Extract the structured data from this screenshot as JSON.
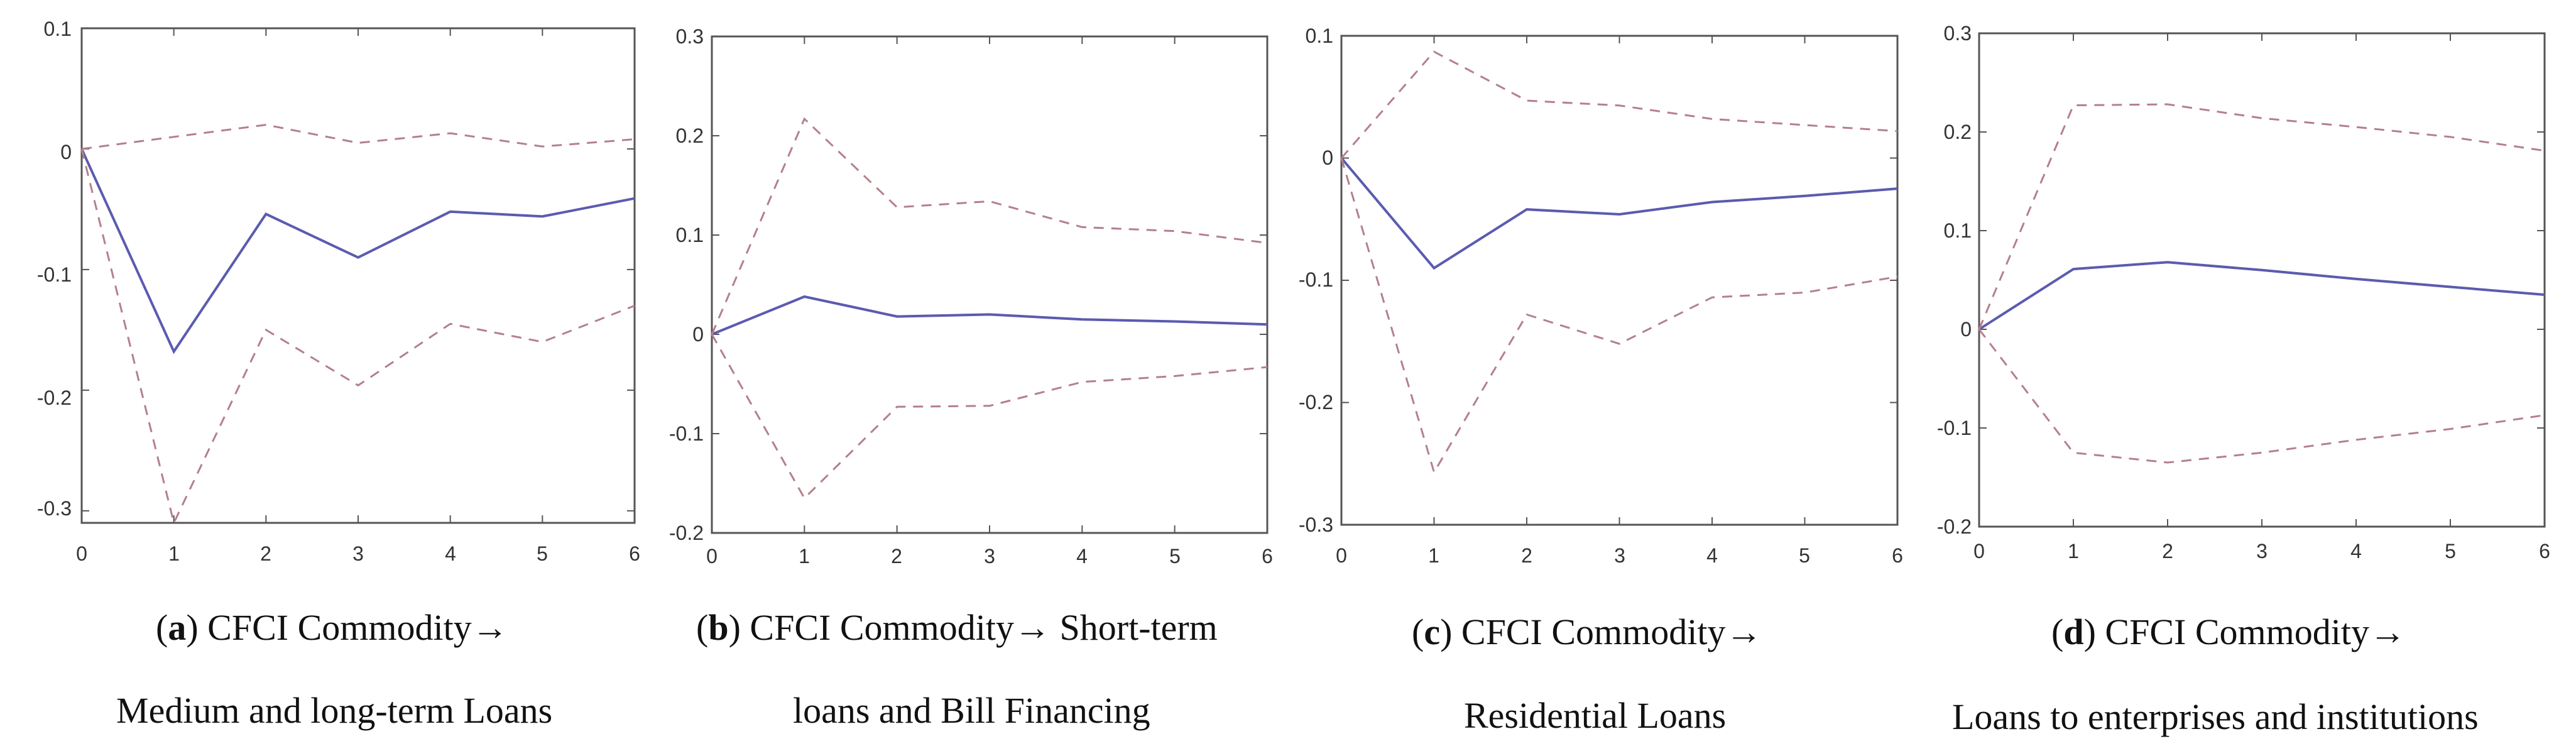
{
  "chart_data": [
    {
      "type": "line",
      "x": [
        0,
        1,
        2,
        3,
        4,
        5,
        6
      ],
      "xlim": [
        0,
        6
      ],
      "ylim": [
        -0.31,
        0.1
      ],
      "yticks": [
        0.1,
        0,
        -0.1,
        -0.2,
        -0.3
      ],
      "ytick_labels": [
        "0.1",
        "0",
        "-0.1",
        "-0.2",
        "-0.3"
      ],
      "xtick_labels": [
        "0",
        "1",
        "2",
        "3",
        "4",
        "5",
        "6"
      ],
      "series": [
        {
          "name": "response",
          "style": "solid",
          "color": "#5b5bb0",
          "values": [
            0,
            -0.168,
            -0.054,
            -0.09,
            -0.052,
            -0.056,
            -0.041
          ]
        },
        {
          "name": "upper band",
          "style": "dashed",
          "color": "#b4808a",
          "values": [
            0,
            0.01,
            0.02,
            0.005,
            0.013,
            0.002,
            0.008
          ]
        },
        {
          "name": "lower band",
          "style": "dashed",
          "color": "#b4808a",
          "values": [
            0,
            -0.31,
            -0.15,
            -0.196,
            -0.145,
            -0.16,
            -0.13
          ]
        }
      ],
      "caption_label": "a",
      "caption_line1": "CFCI Commodity→",
      "caption_line2": "Medium and long-term Loans"
    },
    {
      "type": "line",
      "x": [
        0,
        1,
        2,
        3,
        4,
        5,
        6
      ],
      "xlim": [
        0,
        6
      ],
      "ylim": [
        -0.2,
        0.3
      ],
      "yticks": [
        0.3,
        0.2,
        0.1,
        0,
        -0.1,
        -0.2
      ],
      "ytick_labels": [
        "0.3",
        "0.2",
        "0.1",
        "0",
        "-0.1",
        "-0.2"
      ],
      "xtick_labels": [
        "0",
        "1",
        "2",
        "3",
        "4",
        "5",
        "6"
      ],
      "series": [
        {
          "name": "response",
          "style": "solid",
          "color": "#5b5bb0",
          "values": [
            0,
            0.038,
            0.018,
            0.02,
            0.015,
            0.013,
            0.01
          ]
        },
        {
          "name": "upper band",
          "style": "dashed",
          "color": "#b4808a",
          "values": [
            0,
            0.217,
            0.128,
            0.134,
            0.108,
            0.104,
            0.092
          ]
        },
        {
          "name": "lower band",
          "style": "dashed",
          "color": "#b4808a",
          "values": [
            0,
            -0.165,
            -0.073,
            -0.072,
            -0.048,
            -0.042,
            -0.033
          ]
        }
      ],
      "caption_label": "b",
      "caption_line1": "CFCI Commodity→ Short-term",
      "caption_line2": "loans and Bill Financing"
    },
    {
      "type": "line",
      "x": [
        0,
        1,
        2,
        3,
        4,
        5,
        6
      ],
      "xlim": [
        0,
        6
      ],
      "ylim": [
        -0.3,
        0.1
      ],
      "yticks": [
        0.1,
        0,
        -0.1,
        -0.2,
        -0.3
      ],
      "ytick_labels": [
        "0.1",
        "0",
        "-0.1",
        "-0.2",
        "-0.3"
      ],
      "xtick_labels": [
        "0",
        "1",
        "2",
        "3",
        "4",
        "5",
        "6"
      ],
      "series": [
        {
          "name": "response",
          "style": "solid",
          "color": "#5b5bb0",
          "values": [
            0,
            -0.09,
            -0.042,
            -0.046,
            -0.036,
            -0.031,
            -0.025
          ]
        },
        {
          "name": "upper band",
          "style": "dashed",
          "color": "#b4808a",
          "values": [
            0,
            0.087,
            0.047,
            0.043,
            0.032,
            0.027,
            0.022
          ]
        },
        {
          "name": "lower band",
          "style": "dashed",
          "color": "#b4808a",
          "values": [
            0,
            -0.257,
            -0.128,
            -0.152,
            -0.114,
            -0.11,
            -0.097
          ]
        }
      ],
      "caption_label": "c",
      "caption_line1": "CFCI Commodity→",
      "caption_line2": "Residential Loans"
    },
    {
      "type": "line",
      "x": [
        0,
        1,
        2,
        3,
        4,
        5,
        6
      ],
      "xlim": [
        0,
        6
      ],
      "ylim": [
        -0.2,
        0.3
      ],
      "yticks": [
        0.3,
        0.2,
        0.1,
        0,
        -0.1,
        -0.2
      ],
      "ytick_labels": [
        "0.3",
        "0.2",
        "0.1",
        "0",
        "-0.1",
        "-0.2"
      ],
      "xtick_labels": [
        "0",
        "1",
        "2",
        "3",
        "4",
        "5",
        "6"
      ],
      "series": [
        {
          "name": "response",
          "style": "solid",
          "color": "#5b5bb0",
          "values": [
            0,
            0.061,
            0.068,
            0.06,
            0.051,
            0.043,
            0.035
          ]
        },
        {
          "name": "upper band",
          "style": "dashed",
          "color": "#b4808a",
          "values": [
            0,
            0.227,
            0.228,
            0.214,
            0.205,
            0.195,
            0.181
          ]
        },
        {
          "name": "lower band",
          "style": "dashed",
          "color": "#b4808a",
          "values": [
            0,
            -0.125,
            -0.135,
            -0.125,
            -0.112,
            -0.101,
            -0.087
          ]
        }
      ],
      "caption_label": "d",
      "caption_line1": "CFCI Commodity→",
      "caption_line2": "Loans to enterprises and institutions"
    }
  ]
}
